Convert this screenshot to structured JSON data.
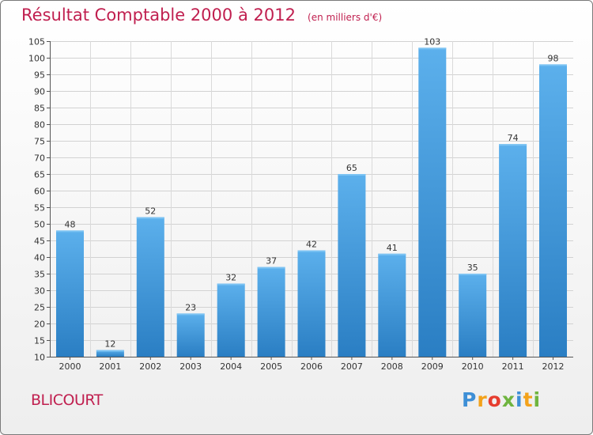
{
  "chart_data": {
    "type": "bar",
    "title": "Résultat Comptable 2000 à 2012",
    "unit_note": "(en milliers d'€)",
    "categories": [
      "2000",
      "2001",
      "2002",
      "2003",
      "2004",
      "2005",
      "2006",
      "2007",
      "2008",
      "2009",
      "2010",
      "2011",
      "2012"
    ],
    "values": [
      48,
      12,
      52,
      23,
      32,
      37,
      42,
      65,
      41,
      103,
      35,
      74,
      98
    ],
    "ylim": [
      10,
      105
    ],
    "yticks": [
      10,
      15,
      20,
      25,
      30,
      35,
      40,
      45,
      50,
      55,
      60,
      65,
      70,
      75,
      80,
      85,
      90,
      95,
      100,
      105
    ],
    "grid": true,
    "xlabel": "",
    "ylabel": ""
  },
  "place_name": "BLICOURT",
  "logo": {
    "letters": [
      "P",
      "r",
      "o",
      "x",
      "i",
      "t",
      "i"
    ],
    "colors": [
      "#3e8fd6",
      "#f3a21b",
      "#e63d2f",
      "#6fb43f",
      "#3e8fd6",
      "#f3a21b",
      "#6fb43f"
    ]
  },
  "colors": {
    "accent": "#c01f4f",
    "bar_top": "#5cb0ec",
    "bar_bottom": "#2a7ec3"
  }
}
